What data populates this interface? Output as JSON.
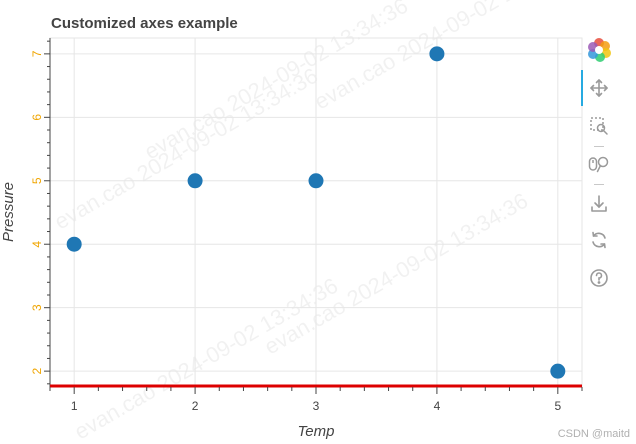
{
  "chart_data": {
    "type": "scatter",
    "title": "Customized axes example",
    "xlabel": "Temp",
    "ylabel": "Pressure",
    "x": [
      1,
      2,
      3,
      4,
      5
    ],
    "y": [
      4,
      5,
      5,
      7,
      2
    ],
    "xlim": [
      0.8,
      5.2
    ],
    "ylim": [
      1.75,
      7.25
    ],
    "xticks": [
      1,
      2,
      3,
      4,
      5
    ],
    "yticks": [
      2,
      3,
      4,
      5,
      6,
      7
    ],
    "grid": true,
    "marker_color": "#1f77b4",
    "ytick_label_color": "#f0a500",
    "xaxis_line_color": "#dd0000"
  },
  "watermark": "evan.cao  2024-09-02  13:34:36",
  "credit": "CSDN @maitd",
  "toolbar": {
    "tools": [
      "bokeh-logo-icon",
      "pan-icon",
      "box-zoom-icon",
      "wheel-zoom-icon",
      "save-icon",
      "reset-icon",
      "help-icon"
    ]
  }
}
